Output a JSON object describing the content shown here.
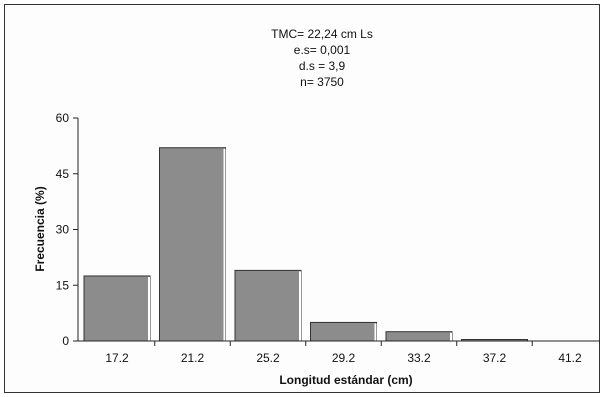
{
  "chart_data": {
    "type": "bar",
    "categories": [
      "17.2",
      "21.2",
      "25.2",
      "29.2",
      "33.2",
      "37.2",
      "41.2"
    ],
    "values": [
      17.5,
      52,
      19,
      5,
      2.5,
      0.4,
      0
    ],
    "xlabel": "Longitud estándar (cm)",
    "ylabel": "Frecuencia (%)",
    "ylim": [
      0,
      60
    ],
    "yticks": [
      "0",
      "15",
      "30",
      "45",
      "60"
    ],
    "annotations": [
      "TMC= 22,24 cm Ls",
      "e.s= 0,001",
      "d.s = 3,9",
      "n= 3750"
    ],
    "colors": {
      "bar": "#8c8c8c",
      "bar_stroke": "#ffffff",
      "axis": "#222222"
    },
    "grid": false
  }
}
